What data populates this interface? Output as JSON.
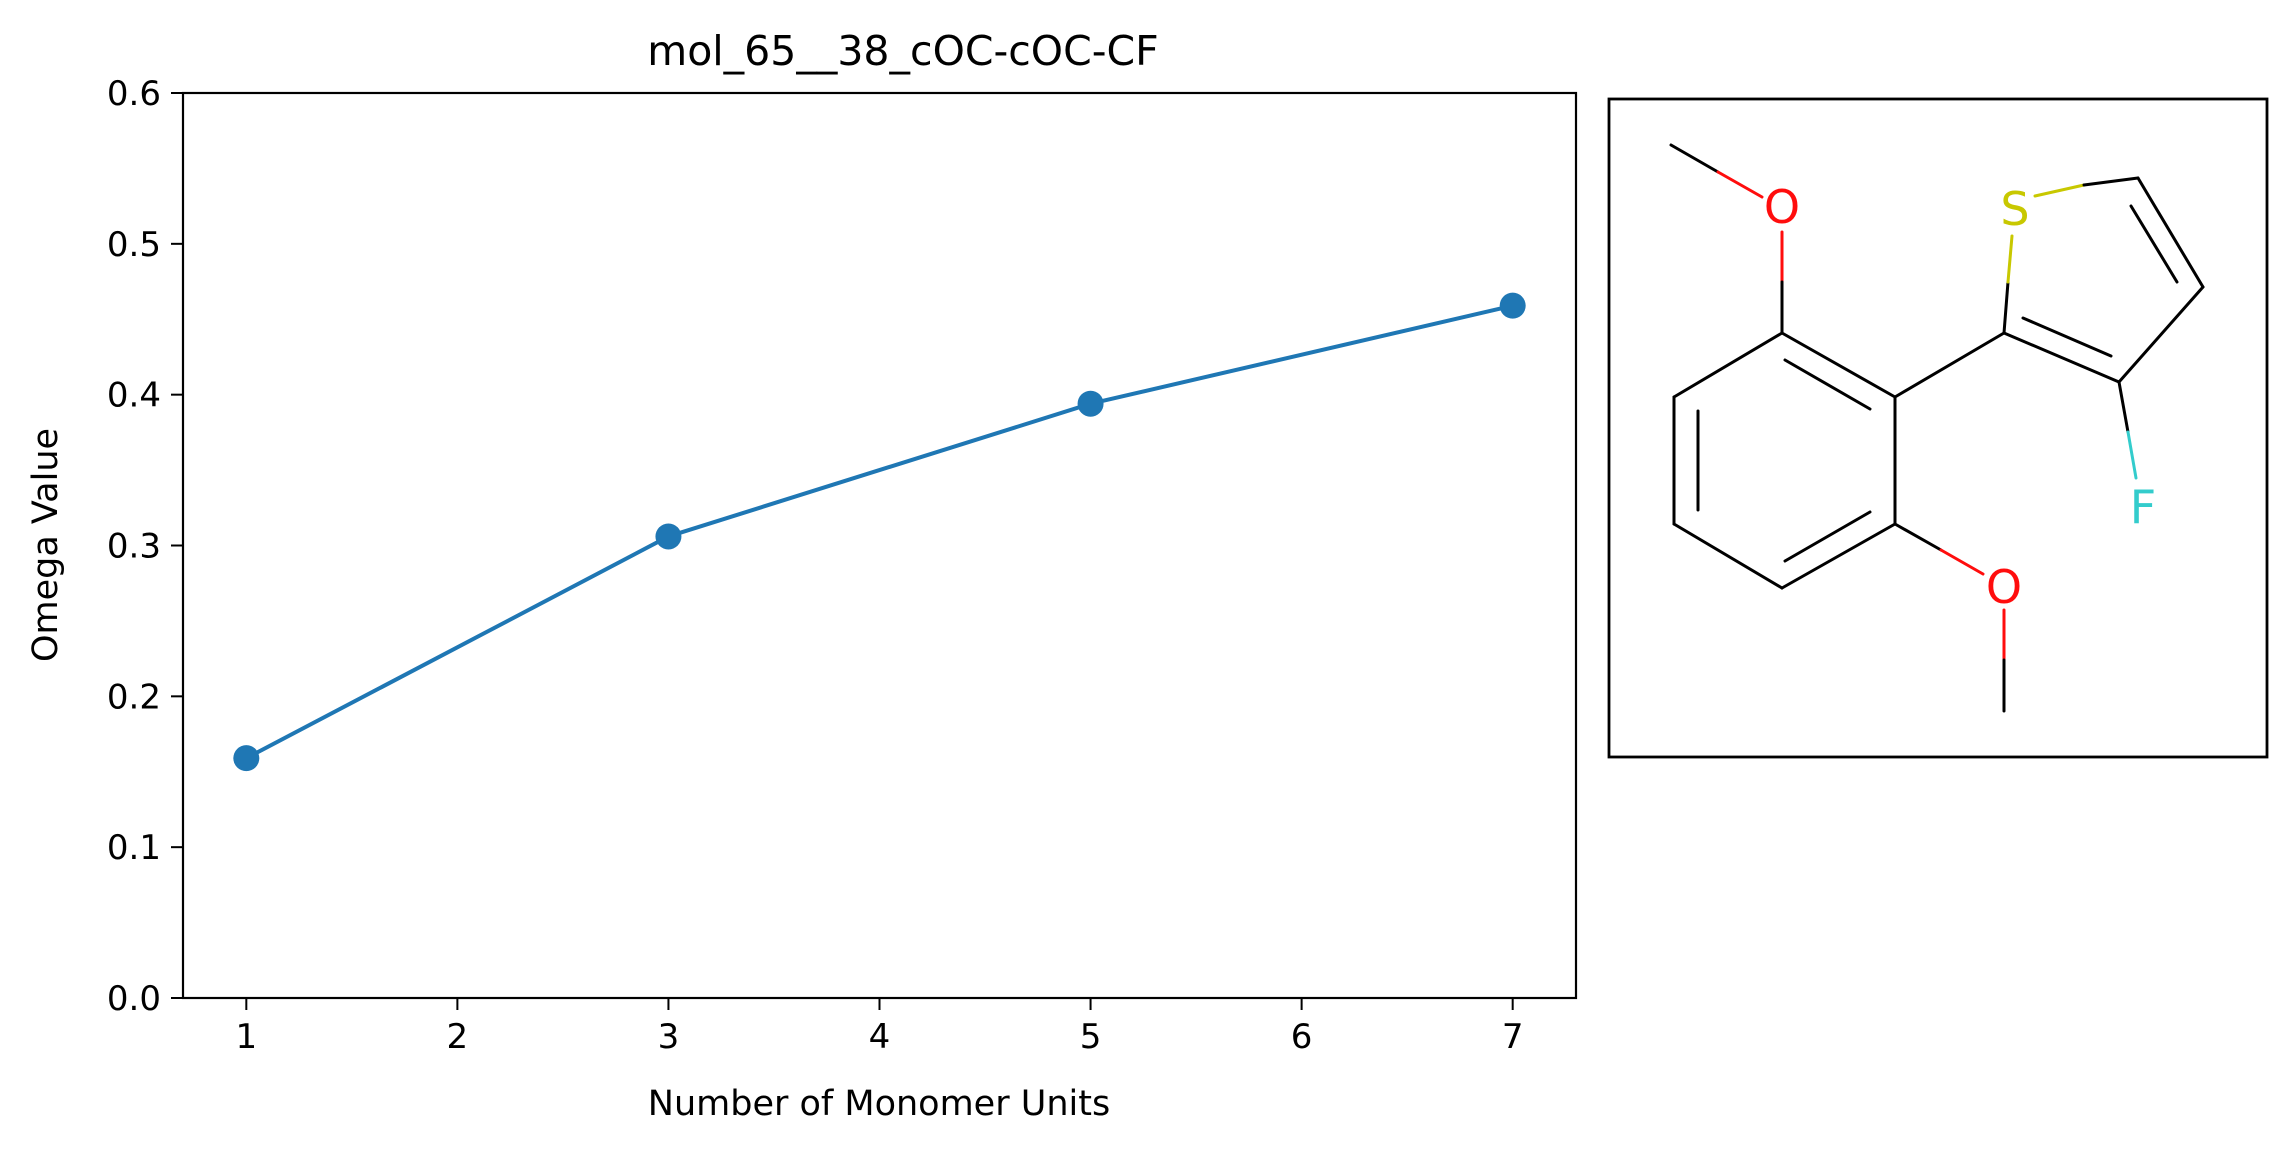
{
  "chart_data": {
    "type": "line",
    "title": "mol_65__38_cOC-cOC-CF",
    "xlabel": "Number of Monomer Units",
    "ylabel": "Omega Value",
    "xlim": [
      0.7,
      7.3
    ],
    "ylim": [
      0.0,
      0.6
    ],
    "xticks": [
      "1",
      "2",
      "3",
      "4",
      "5",
      "6",
      "7"
    ],
    "yticks": [
      "0.0",
      "0.1",
      "0.2",
      "0.3",
      "0.4",
      "0.5",
      "0.6"
    ],
    "grid": false,
    "legend": "none",
    "series": [
      {
        "color": "#1f77b4",
        "marker": "circle",
        "x": [
          1,
          3,
          5,
          7
        ],
        "y": [
          0.159,
          0.306,
          0.394,
          0.459
        ]
      }
    ]
  },
  "molecule": {
    "atoms": {
      "o_top": "O",
      "o_bottom": "O",
      "s": "S",
      "f": "F"
    },
    "colors": {
      "oxygen": "#ff0d0d",
      "sulfur": "#c8c800",
      "fluorine": "#33cccc",
      "bond": "#000000"
    }
  }
}
